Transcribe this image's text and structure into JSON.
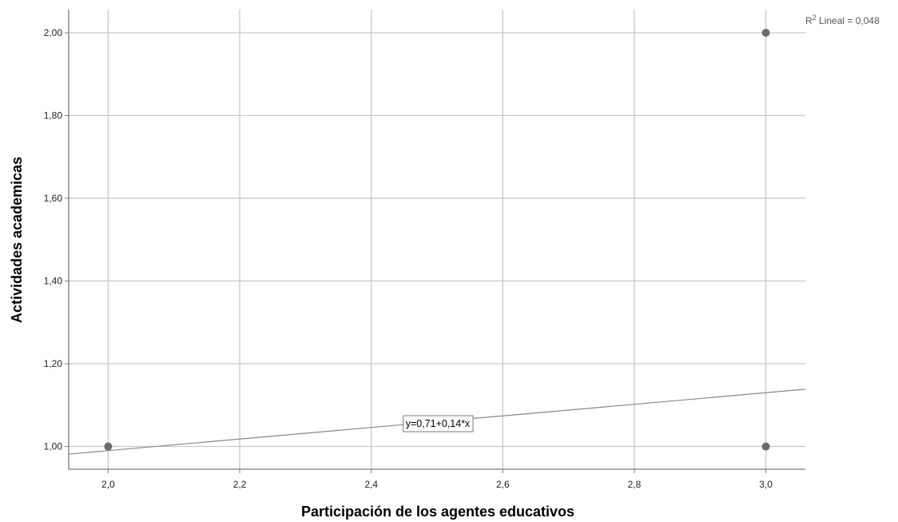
{
  "colors": {
    "grid": "#c8c8c8",
    "axis": "#7a7a7a",
    "point": "#6b6b6b",
    "fit_line": "#888888"
  },
  "chart_data": {
    "type": "scatter",
    "xlabel": "Participación de los agentes educativos",
    "ylabel": "Actividades academicas",
    "xlim": [
      1.94,
      3.06
    ],
    "ylim": [
      0.945,
      2.056
    ],
    "x_ticks": [
      2.0,
      2.2,
      2.4,
      2.6,
      2.8,
      3.0
    ],
    "x_tick_labels": [
      "2,0",
      "2,2",
      "2,4",
      "2,6",
      "2,8",
      "3,0"
    ],
    "y_ticks": [
      1.0,
      1.2,
      1.4,
      1.6,
      1.8,
      2.0
    ],
    "y_tick_labels": [
      "1,00",
      "1,20",
      "1,40",
      "1,60",
      "1,80",
      "2,00"
    ],
    "grid": true,
    "points": [
      {
        "x": 2.0,
        "y": 1.0
      },
      {
        "x": 3.0,
        "y": 1.0
      },
      {
        "x": 3.0,
        "y": 2.0
      }
    ],
    "fit_line": {
      "intercept": 0.71,
      "slope": 0.14
    },
    "fit_equation": "y=0,71+0,14*x",
    "r2_prefix": "R",
    "r2_superscript": "2",
    "r2_text": " Lineal = 0,048"
  }
}
